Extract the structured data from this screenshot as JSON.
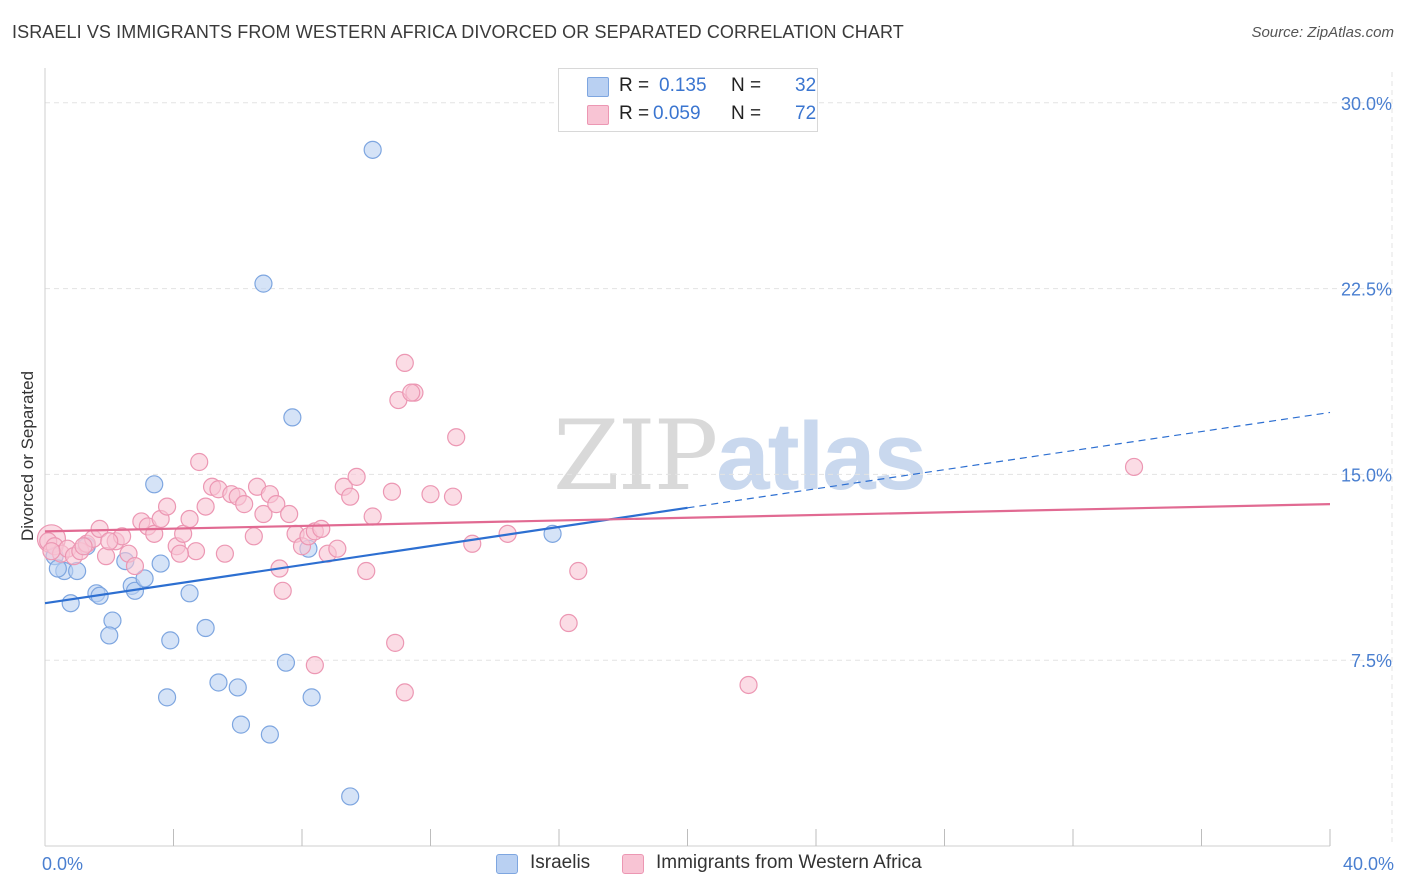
{
  "header": {
    "title": "ISRAELI VS IMMIGRANTS FROM WESTERN AFRICA DIVORCED OR SEPARATED CORRELATION CHART",
    "source": "Source: ZipAtlas.com"
  },
  "watermark": {
    "part1": "ZIP",
    "part2": "atlas"
  },
  "legend": {
    "israelis": {
      "r_label": "R = ",
      "r_value": "0.135",
      "n_label": "N = ",
      "n_value": "32"
    },
    "wafrica": {
      "r_label": "R = ",
      "r_value": "0.059",
      "n_label": "N = ",
      "n_value": "72"
    }
  },
  "bottom_legend": {
    "israelis": "Israelis",
    "wafrica": "Immigrants from Western Africa"
  },
  "colors": {
    "israelis_fill": "#b9d0f2",
    "israelis_stroke": "#7ea6e0",
    "israelis_line": "#2d6fd1",
    "wafrica_fill": "#f8c4d4",
    "wafrica_stroke": "#ec97b3",
    "wafrica_line": "#e16a92",
    "grid": "#e3e3e3",
    "tick_text": "#4a7fd0"
  },
  "chart_data": {
    "type": "scatter",
    "title": "ISRAELI VS IMMIGRANTS FROM WESTERN AFRICA DIVORCED OR SEPARATED CORRELATION CHART",
    "xlabel": "",
    "ylabel": "Divorced or Separated",
    "xlim": [
      0,
      40
    ],
    "ylim": [
      0,
      31
    ],
    "y_ticks": [
      {
        "value": 7.5,
        "label": "7.5%"
      },
      {
        "value": 15.0,
        "label": "15.0%"
      },
      {
        "value": 22.5,
        "label": "22.5%"
      },
      {
        "value": 30.0,
        "label": "30.0%"
      }
    ],
    "x_tick_labels": [
      {
        "value": 0,
        "label": "0.0%"
      },
      {
        "value": 40,
        "label": "40.0%"
      }
    ],
    "x_minor_ticks": [
      4,
      8,
      12,
      16,
      20,
      24,
      28,
      32,
      36,
      40
    ],
    "series": [
      {
        "name": "Israelis",
        "r": 0.135,
        "n": 32,
        "points": [
          [
            10.2,
            28.1
          ],
          [
            6.8,
            22.7
          ],
          [
            7.7,
            17.3
          ],
          [
            3.4,
            14.6
          ],
          [
            1.3,
            12.1
          ],
          [
            0.3,
            11.7
          ],
          [
            0.6,
            11.1
          ],
          [
            1.0,
            11.1
          ],
          [
            2.5,
            11.5
          ],
          [
            3.6,
            11.4
          ],
          [
            15.8,
            12.6
          ],
          [
            8.2,
            12.0
          ],
          [
            0.4,
            11.2
          ],
          [
            1.6,
            10.2
          ],
          [
            1.7,
            10.1
          ],
          [
            2.7,
            10.5
          ],
          [
            2.8,
            10.3
          ],
          [
            3.1,
            10.8
          ],
          [
            4.5,
            10.2
          ],
          [
            0.8,
            9.8
          ],
          [
            2.1,
            9.1
          ],
          [
            2.0,
            8.5
          ],
          [
            3.9,
            8.3
          ],
          [
            5.0,
            8.8
          ],
          [
            7.5,
            7.4
          ],
          [
            5.4,
            6.6
          ],
          [
            6.0,
            6.4
          ],
          [
            3.8,
            6.0
          ],
          [
            8.3,
            6.0
          ],
          [
            6.1,
            4.9
          ],
          [
            7.0,
            4.5
          ],
          [
            9.5,
            2.0
          ]
        ],
        "trend": {
          "x0": 0,
          "y0": 9.8,
          "x1": 40,
          "y1": 17.5,
          "solid_until_x": 20
        }
      },
      {
        "name": "Immigrants from Western Africa",
        "r": 0.059,
        "n": 72,
        "points": [
          [
            0.1,
            12.3
          ],
          [
            0.3,
            12.1
          ],
          [
            0.5,
            11.8
          ],
          [
            0.7,
            12.0
          ],
          [
            0.9,
            11.7
          ],
          [
            1.1,
            11.9
          ],
          [
            1.3,
            12.2
          ],
          [
            1.5,
            12.4
          ],
          [
            1.7,
            12.8
          ],
          [
            1.9,
            11.7
          ],
          [
            2.2,
            12.3
          ],
          [
            2.4,
            12.5
          ],
          [
            2.6,
            11.8
          ],
          [
            2.8,
            11.3
          ],
          [
            3.0,
            13.1
          ],
          [
            3.2,
            12.9
          ],
          [
            3.4,
            12.6
          ],
          [
            3.6,
            13.2
          ],
          [
            3.8,
            13.7
          ],
          [
            4.1,
            12.1
          ],
          [
            4.3,
            12.6
          ],
          [
            4.5,
            13.2
          ],
          [
            4.7,
            11.9
          ],
          [
            4.8,
            15.5
          ],
          [
            5.0,
            13.7
          ],
          [
            5.2,
            14.5
          ],
          [
            5.4,
            14.4
          ],
          [
            5.6,
            11.8
          ],
          [
            5.8,
            14.2
          ],
          [
            6.0,
            14.1
          ],
          [
            6.2,
            13.8
          ],
          [
            6.5,
            12.5
          ],
          [
            6.6,
            14.5
          ],
          [
            6.8,
            13.4
          ],
          [
            7.0,
            14.2
          ],
          [
            7.2,
            13.8
          ],
          [
            7.4,
            10.3
          ],
          [
            7.6,
            13.4
          ],
          [
            7.8,
            12.6
          ],
          [
            8.0,
            12.1
          ],
          [
            8.2,
            12.5
          ],
          [
            8.4,
            12.7
          ],
          [
            8.6,
            12.8
          ],
          [
            8.8,
            11.8
          ],
          [
            9.1,
            12.0
          ],
          [
            9.3,
            14.5
          ],
          [
            9.5,
            14.1
          ],
          [
            9.7,
            14.9
          ],
          [
            10.0,
            11.1
          ],
          [
            10.2,
            13.3
          ],
          [
            10.8,
            14.3
          ],
          [
            11.0,
            18.0
          ],
          [
            11.2,
            19.5
          ],
          [
            11.5,
            18.3
          ],
          [
            11.4,
            18.3
          ],
          [
            12.0,
            14.2
          ],
          [
            12.7,
            14.1
          ],
          [
            12.8,
            16.5
          ],
          [
            13.3,
            12.2
          ],
          [
            14.4,
            12.6
          ],
          [
            16.3,
            9.0
          ],
          [
            16.6,
            11.1
          ],
          [
            21.9,
            6.5
          ],
          [
            33.9,
            15.3
          ],
          [
            10.9,
            8.2
          ],
          [
            11.2,
            6.2
          ],
          [
            8.4,
            7.3
          ],
          [
            7.3,
            11.2
          ],
          [
            4.2,
            11.8
          ],
          [
            1.2,
            12.1
          ],
          [
            0.2,
            11.9
          ],
          [
            2.0,
            12.3
          ]
        ],
        "trend": {
          "x0": 0,
          "y0": 12.7,
          "x1": 40,
          "y1": 13.8,
          "solid_until_x": 40
        }
      }
    ]
  }
}
